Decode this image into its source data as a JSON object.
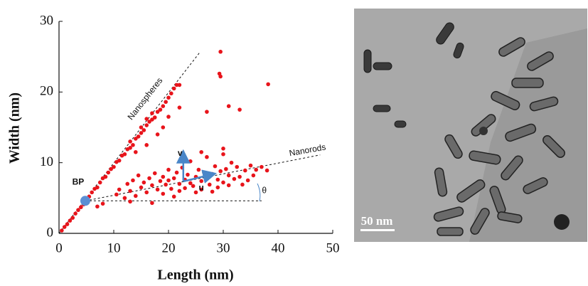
{
  "chart_data": {
    "type": "scatter",
    "xlabel": "Length (nm)",
    "ylabel": "Width (nm)",
    "xlim": [
      0,
      50
    ],
    "ylim": [
      0,
      30
    ],
    "xticks": [
      0,
      10,
      20,
      30,
      40,
      50
    ],
    "yticks": [
      0,
      10,
      20,
      30
    ],
    "series": [
      {
        "color": "#e8141b",
        "x": [
          0.5,
          1,
          1.5,
          2,
          2.5,
          3,
          3.5,
          4,
          4.5,
          5.5,
          6,
          6.5,
          7,
          7.5,
          8,
          8.5,
          9,
          9.5,
          10,
          10.5,
          11,
          11.5,
          12,
          12.5,
          13,
          13,
          13.5,
          14,
          14.5,
          15,
          15,
          15.5,
          16,
          16,
          16.5,
          17,
          17,
          17.5,
          18,
          18.5,
          19,
          19.5,
          20,
          20.5,
          21,
          21.5,
          16,
          18,
          19,
          20,
          14,
          22,
          10.5,
          11,
          12,
          12.5,
          13,
          13.5,
          14,
          14.5,
          15,
          15.5,
          16,
          16.5,
          17,
          17.5,
          18,
          18.5,
          19,
          19,
          19.5,
          20,
          20,
          20.5,
          21,
          21,
          21.5,
          22,
          22,
          22.5,
          23,
          23,
          23.5,
          24,
          24,
          24.5,
          25,
          25,
          25.5,
          26,
          26,
          26.5,
          27,
          27,
          27.5,
          28,
          28,
          28.5,
          29,
          29,
          29.5,
          30,
          30,
          30.5,
          31,
          31,
          31.5,
          32,
          32.5,
          33,
          33.5,
          34,
          34.5,
          35,
          35.5,
          36,
          37,
          38,
          13,
          17,
          30,
          26,
          22.5,
          7,
          8,
          29.5,
          29.3,
          29.5,
          38.2,
          33,
          27,
          31,
          22
        ],
        "values": [
          0.4,
          0.9,
          1.3,
          1.8,
          2.2,
          2.8,
          3.3,
          3.7,
          4.1,
          5.2,
          5.8,
          6.3,
          6.5,
          7.2,
          7.8,
          8,
          8.6,
          9.1,
          9.4,
          10.1,
          10.3,
          11,
          11.2,
          11.9,
          12.1,
          13,
          12.5,
          13.4,
          13.7,
          14.2,
          15,
          14.6,
          15.3,
          16.2,
          15.8,
          16.1,
          17,
          16.4,
          17.2,
          17.5,
          18,
          18.6,
          19.2,
          19.8,
          20.5,
          21,
          12.5,
          14,
          15,
          16.5,
          11.5,
          17.8,
          5.5,
          6.2,
          5,
          7,
          6,
          7.5,
          5.3,
          8.2,
          6.5,
          7.2,
          5.8,
          7.8,
          6.8,
          8.5,
          6.2,
          7.4,
          5.6,
          8,
          6.9,
          7.5,
          9,
          6.3,
          7.8,
          5.2,
          8.6,
          7,
          6,
          9.3,
          7.6,
          6.4,
          8.3,
          7.1,
          10.2,
          6.7,
          8,
          5.8,
          9,
          7.4,
          6.2,
          8.6,
          7.9,
          10.8,
          6.9,
          8.4,
          5.9,
          9.5,
          7.6,
          6.5,
          8.8,
          7.2,
          11.2,
          9.1,
          6.8,
          8.2,
          10,
          7.7,
          9.4,
          8,
          6.9,
          8.9,
          7.5,
          9.6,
          8.2,
          9,
          9.4,
          8.9,
          4.5,
          4.3,
          12,
          11.5,
          11,
          3.8,
          4.2,
          25.7,
          22.6,
          22.2,
          21.1,
          17.5,
          17.2,
          18,
          21
        ]
      }
    ],
    "reference_lines": [
      {
        "x": [
          0,
          25.6
        ],
        "y": [
          0,
          25.5
        ]
      },
      {
        "x": [
          4.8,
          47.7
        ],
        "y": [
          4.6,
          11.1
        ]
      },
      {
        "x": [
          4.8,
          37
        ],
        "y": [
          4.6,
          4.6
        ]
      }
    ],
    "arrows": [
      {
        "x": [
          22.7,
          22.7
        ],
        "y": [
          7.35,
          11.4
        ]
      },
      {
        "x": [
          22.7,
          28.2
        ],
        "y": [
          7.35,
          8.4
        ]
      }
    ],
    "marker": {
      "x": 4.8,
      "y": 4.6,
      "color": "#5b8fd4"
    },
    "annotations": [
      {
        "text": "Nanospheres",
        "x": 15.8,
        "y": 19
      },
      {
        "text": "Nanorods",
        "x": 45.4,
        "y": 11.7
      },
      {
        "text": "BP",
        "x": 3.5,
        "y": 7.2
      },
      {
        "text": "v",
        "x": 22.1,
        "y": 11.3
      },
      {
        "text": "u",
        "x": 26,
        "y": 6.4
      },
      {
        "text": "θ",
        "x": 37.5,
        "y": 6
      }
    ]
  },
  "image": {
    "scale_bar_label": "50 nm"
  }
}
